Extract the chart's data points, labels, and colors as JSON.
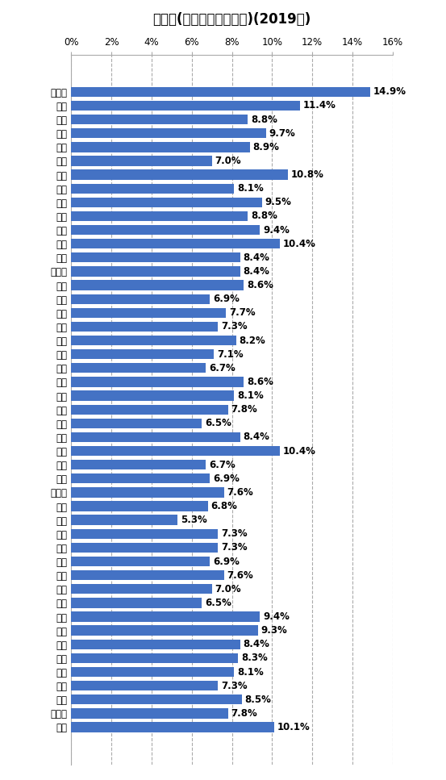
{
  "title": "喫煙率(女性、都道府県別)(2019年)",
  "categories": [
    "北海道",
    "青森",
    "岩手",
    "宮城",
    "秋田",
    "山形",
    "福島",
    "茨城",
    "栃木",
    "群馬",
    "埼玉",
    "千葉",
    "東京",
    "神奈川",
    "新潟",
    "富山",
    "石川",
    "福井",
    "山梨",
    "長野",
    "岐阜",
    "静岡",
    "愛知",
    "三重",
    "滋賀",
    "京都",
    "大阪",
    "兵庫",
    "奈良",
    "和歌山",
    "鳥取",
    "島根",
    "岡山",
    "広島",
    "山口",
    "徳島",
    "香川",
    "愛媛",
    "高知",
    "福岡",
    "佐賀",
    "長崎",
    "熊本",
    "大分",
    "宮崎",
    "鹿児島",
    "沖縄"
  ],
  "values": [
    14.9,
    11.4,
    8.8,
    9.7,
    8.9,
    7.0,
    10.8,
    8.1,
    9.5,
    8.8,
    9.4,
    10.4,
    8.4,
    8.4,
    8.6,
    6.9,
    7.7,
    7.3,
    8.2,
    7.1,
    6.7,
    8.6,
    8.1,
    7.8,
    6.5,
    8.4,
    10.4,
    6.7,
    6.9,
    7.6,
    6.8,
    5.3,
    7.3,
    7.3,
    6.9,
    7.6,
    7.0,
    6.5,
    9.4,
    9.3,
    8.4,
    8.3,
    8.1,
    7.3,
    8.5,
    7.8,
    10.1
  ],
  "bar_color": "#4472c4",
  "background_color": "#ffffff",
  "xlim": [
    0,
    16
  ],
  "xticks": [
    0,
    2,
    4,
    6,
    8,
    10,
    12,
    14,
    16
  ],
  "xtick_labels": [
    "0%",
    "2%",
    "4%",
    "6%",
    "8%",
    "10%",
    "12%",
    "14%",
    "16%"
  ],
  "title_fontsize": 12,
  "label_fontsize": 8.5,
  "value_fontsize": 8.5,
  "bar_height": 0.72,
  "grid_color": "#aaaaaa",
  "grid_linestyle": "--",
  "text_color": "#000000",
  "spine_color": "#aaaaaa"
}
